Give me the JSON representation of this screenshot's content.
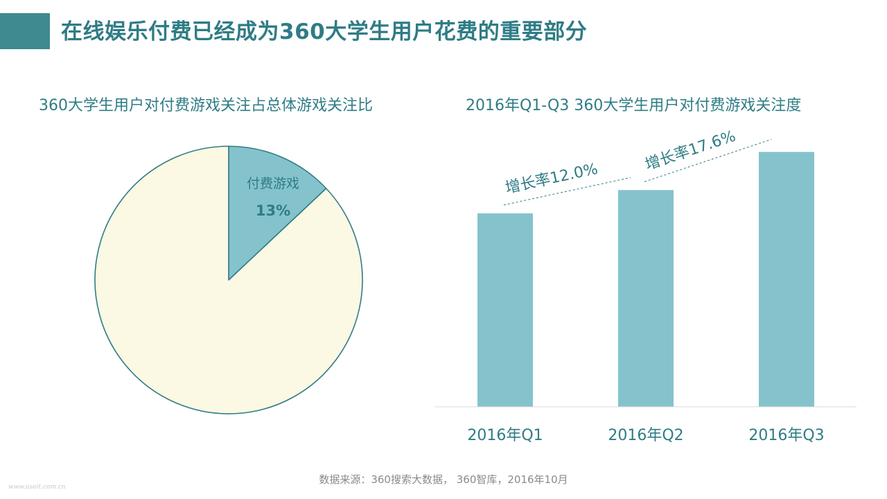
{
  "page_title": "在线娱乐付费已经成为360大学生用户花费的重要部分",
  "source": "数据来源：360搜索大数据， 360智库，2016年10月",
  "watermark": "www.useit.com.cn",
  "colors": {
    "accent": "#3f8a90",
    "title_text": "#2f7c85",
    "bar": "#85c3cc",
    "pie_highlight": "#85c3cc",
    "pie_rest": "#fbf8e3",
    "pie_stroke": "#2f7c85",
    "trend_line": "#2f7c85"
  },
  "chart_data": [
    {
      "type": "pie",
      "title": "360大学生用户对付费游戏关注占总体游戏关注比",
      "slices": [
        {
          "label": "付费游戏",
          "value": 13,
          "display": "13%"
        },
        {
          "label": "",
          "value": 87,
          "display": ""
        }
      ]
    },
    {
      "type": "bar",
      "title": "2016年Q1-Q3 360大学生用户对付费游戏关注度",
      "categories": [
        "2016年Q1",
        "2016年Q2",
        "2016年Q3"
      ],
      "values": [
        100,
        112,
        131.7
      ],
      "ylim": [
        0,
        135
      ],
      "grid": false,
      "annotations": [
        {
          "text": "增长率12.0%",
          "from": "2016年Q1",
          "to": "2016年Q2"
        },
        {
          "text": "增长率17.6%",
          "from": "2016年Q2",
          "to": "2016年Q3"
        }
      ]
    }
  ]
}
